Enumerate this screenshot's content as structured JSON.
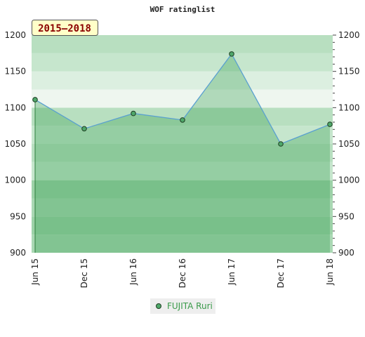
{
  "chart_data": {
    "type": "line",
    "title": "WOF ratinglist",
    "period_badge": "2015—2018",
    "x": [
      "Jun 15",
      "Dec 15",
      "Jun 16",
      "Dec 16",
      "Jun 17",
      "Dec 17",
      "Jun 18"
    ],
    "series": [
      {
        "name": "FUJITA Ruri",
        "values": [
          1111,
          1071,
          1092,
          1083,
          1174,
          1050,
          1077
        ]
      }
    ],
    "ylim": [
      900,
      1200
    ],
    "yticks": [
      900,
      950,
      1000,
      1050,
      1100,
      1150,
      1200
    ],
    "yaxis_both_sides": true,
    "legend_position": "bottom-center",
    "colors": {
      "line": "#5aa0d0",
      "marker_fill": "#4fa86a",
      "marker_stroke": "#1e3d22",
      "badge_bg": "#ffffc8"
    }
  }
}
